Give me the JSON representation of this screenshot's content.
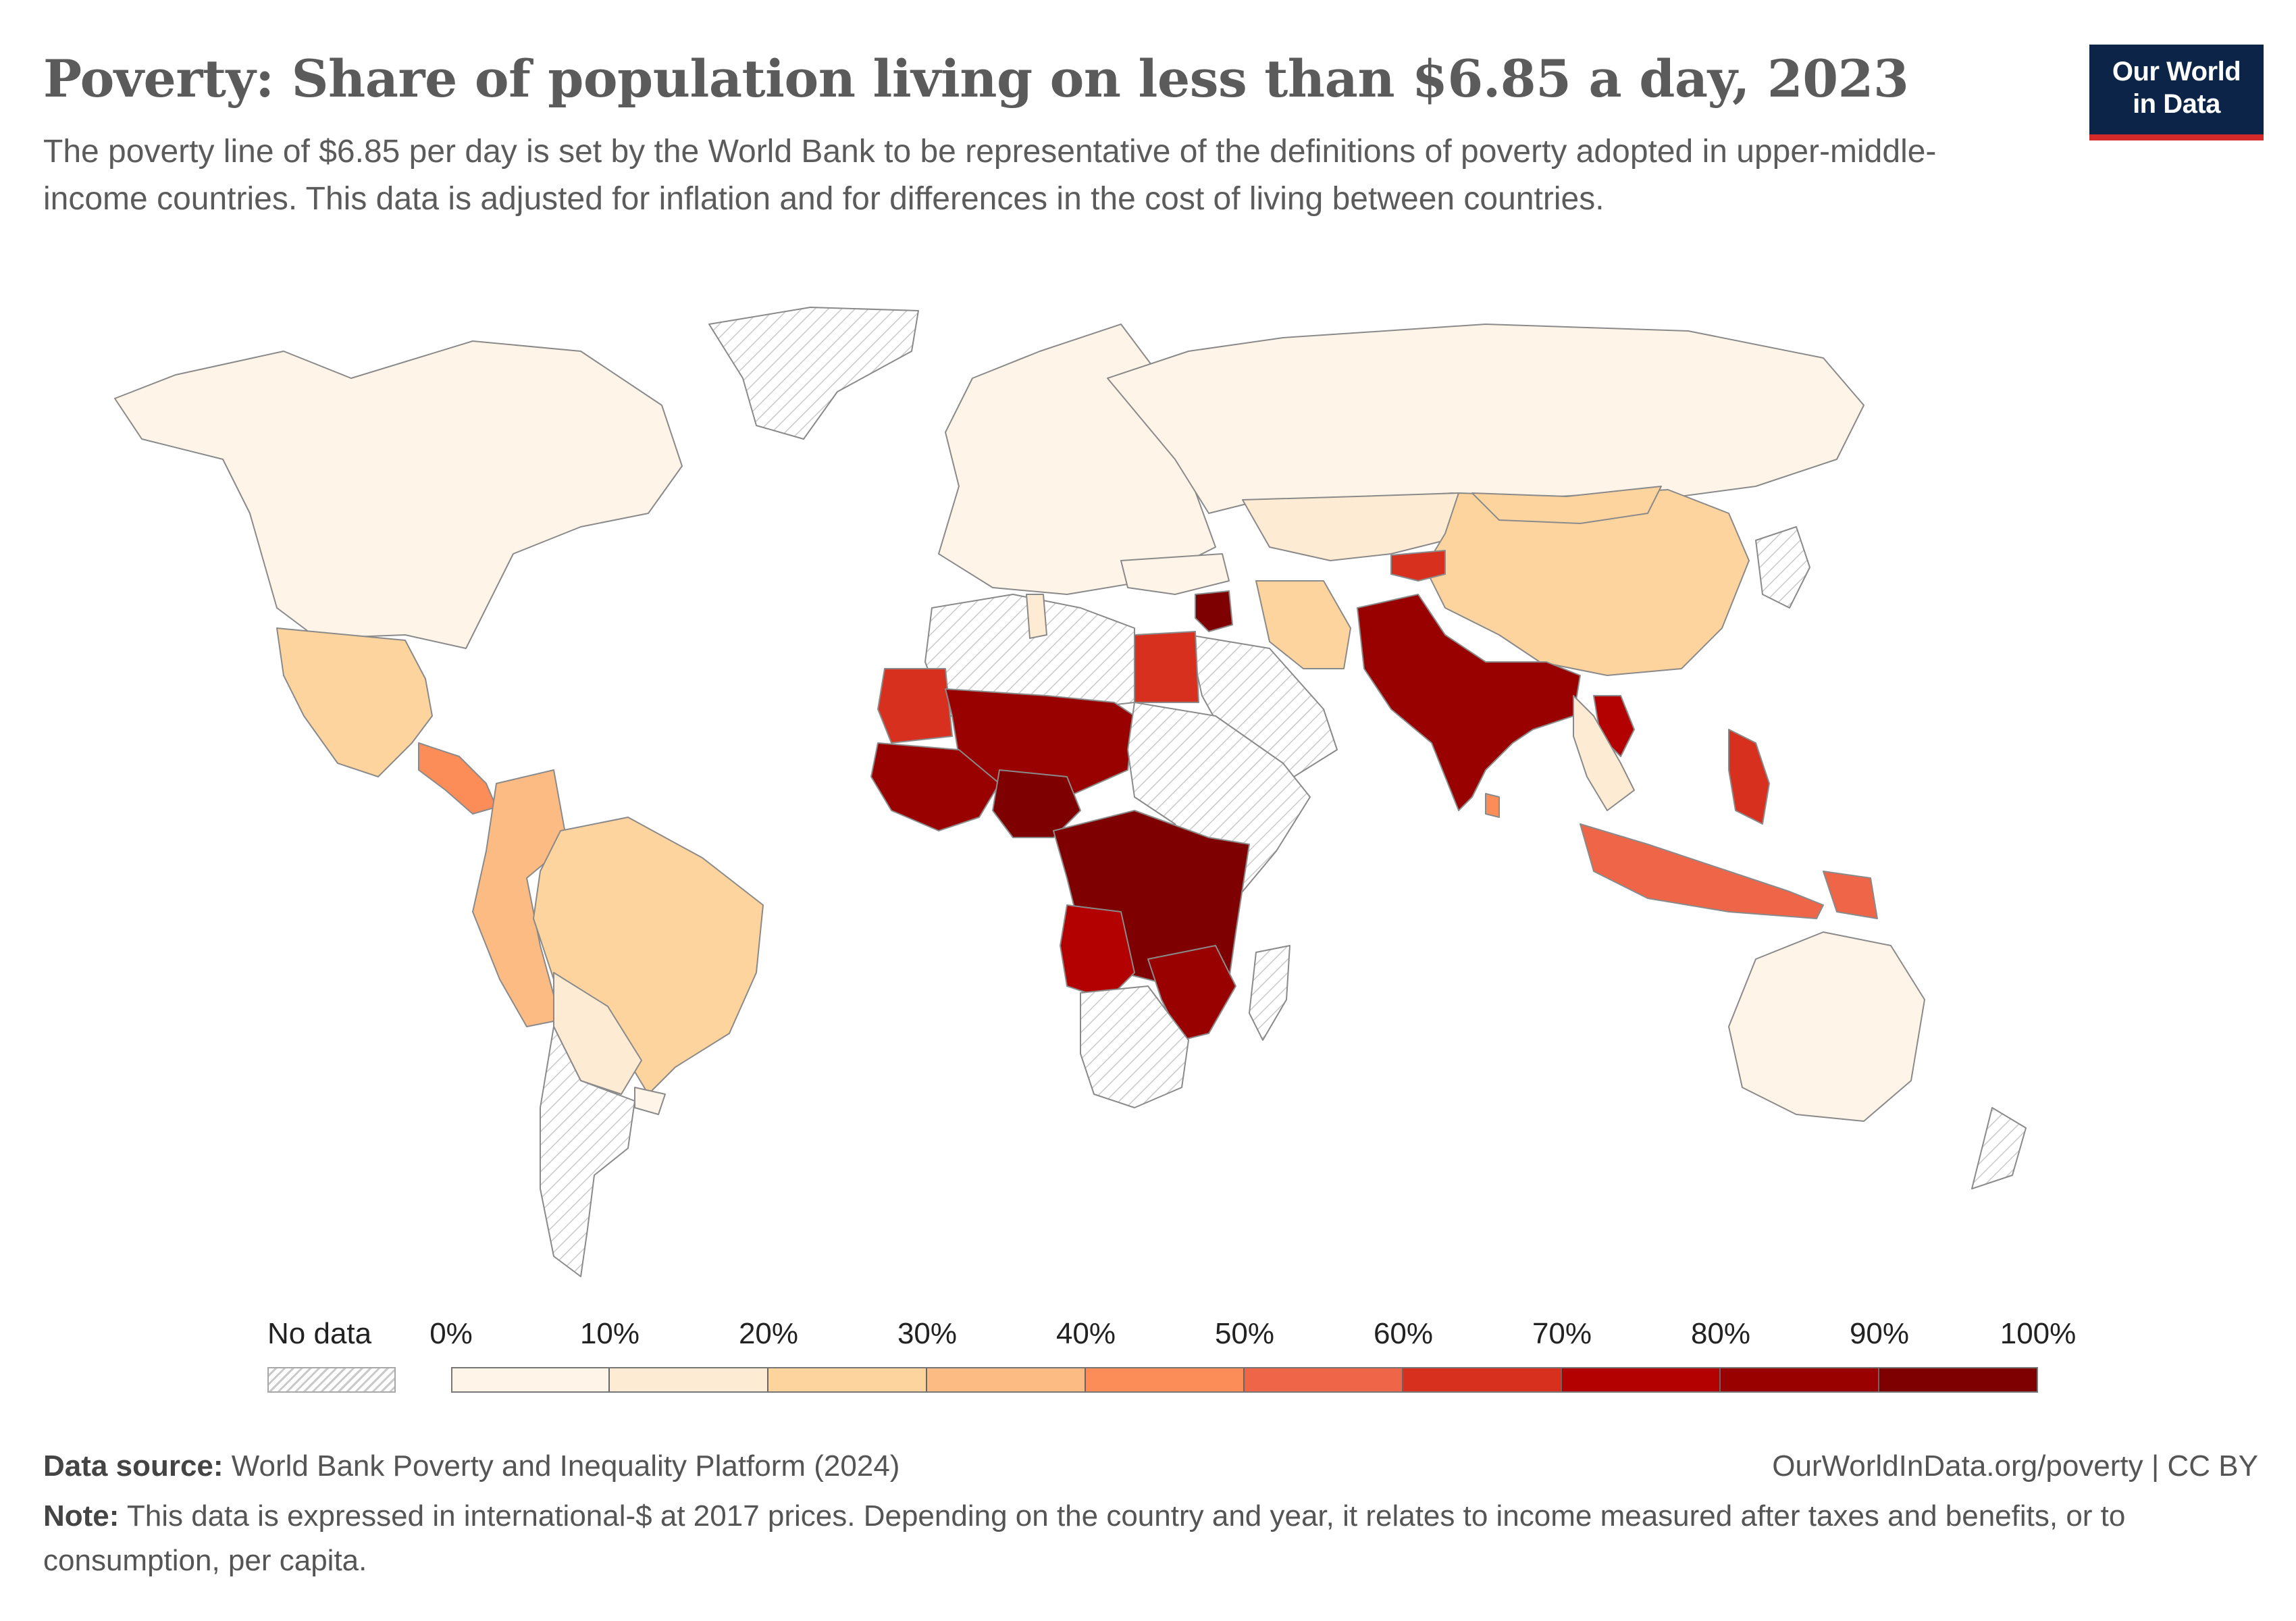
{
  "header": {
    "title": "Poverty: Share of population living on less than $6.85 a day, 2023",
    "subtitle": "The poverty line of $6.85 per day is set by the World Bank to be representative of the definitions of poverty adopted in upper-middle-income countries. This data is adjusted for inflation and for differences in the cost of living between countries."
  },
  "logo": {
    "line1": "Our World",
    "line2": "in Data"
  },
  "colors": {
    "no_data_fill": "#ffffff",
    "no_data_hatch": "#c9c9c9",
    "border": "#8a8a8a",
    "scale": [
      "#fff4e8",
      "#feebd3",
      "#fdd49e",
      "#fdbb84",
      "#fc8d59",
      "#ef6548",
      "#d7301f",
      "#b30000",
      "#990000",
      "#7f0000"
    ]
  },
  "legend": {
    "no_data_label": "No data",
    "ticks": [
      "0%",
      "10%",
      "20%",
      "30%",
      "40%",
      "50%",
      "60%",
      "70%",
      "80%",
      "90%",
      "100%"
    ]
  },
  "map_data": {
    "metric": "Share of population living on less than $6.85 a day (%)",
    "year": 2023,
    "regions": [
      {
        "name": "North America",
        "bin": 0
      },
      {
        "name": "Mexico",
        "bin": 2
      },
      {
        "name": "Central America",
        "bin": 4
      },
      {
        "name": "Colombia & Andes",
        "bin": 3
      },
      {
        "name": "Brazil",
        "bin": 2
      },
      {
        "name": "Bolivia & Paraguay",
        "bin": 1
      },
      {
        "name": "Argentina & Chile",
        "bin": -1
      },
      {
        "name": "Uruguay",
        "bin": 0
      },
      {
        "name": "Greenland",
        "bin": -1
      },
      {
        "name": "Europe",
        "bin": 0
      },
      {
        "name": "Russia",
        "bin": 0
      },
      {
        "name": "Kazakhstan",
        "bin": 1
      },
      {
        "name": "China",
        "bin": 2
      },
      {
        "name": "Mongolia",
        "bin": 2
      },
      {
        "name": "Kyrgyzstan & Tajikistan",
        "bin": 6
      },
      {
        "name": "Iran",
        "bin": 2
      },
      {
        "name": "Turkey",
        "bin": 0
      },
      {
        "name": "Syria",
        "bin": 9
      },
      {
        "name": "Arabian Peninsula",
        "bin": -1
      },
      {
        "name": "Egypt",
        "bin": 6
      },
      {
        "name": "North Africa (Libya, Algeria)",
        "bin": -1
      },
      {
        "name": "Tunisia",
        "bin": 1
      },
      {
        "name": "Mauritania",
        "bin": 6
      },
      {
        "name": "Sahel (Mali, Niger, Chad)",
        "bin": 8
      },
      {
        "name": "West Africa",
        "bin": 8
      },
      {
        "name": "Nigeria",
        "bin": 9
      },
      {
        "name": "Sudan & Horn of Africa",
        "bin": -1
      },
      {
        "name": "Central & East Africa (DRC, Tanzania)",
        "bin": 9
      },
      {
        "name": "Angola",
        "bin": 7
      },
      {
        "name": "Mozambique & Malawi",
        "bin": 8
      },
      {
        "name": "Southern Africa",
        "bin": -1
      },
      {
        "name": "Madagascar",
        "bin": -1
      },
      {
        "name": "South Asia (India, Pakistan, Bangladesh)",
        "bin": 8
      },
      {
        "name": "Sri Lanka",
        "bin": 4
      },
      {
        "name": "Laos",
        "bin": 7
      },
      {
        "name": "Thailand & Vietnam",
        "bin": 1
      },
      {
        "name": "Philippines",
        "bin": 6
      },
      {
        "name": "Indonesia",
        "bin": 5
      },
      {
        "name": "Papua New Guinea",
        "bin": 5
      },
      {
        "name": "Australia",
        "bin": 0
      },
      {
        "name": "Japan & Korea",
        "bin": -1
      },
      {
        "name": "New Zealand",
        "bin": -1
      }
    ]
  },
  "footer": {
    "source_label": "Data source:",
    "source_text": "World Bank Poverty and Inequality Platform (2024)",
    "url": "OurWorldInData.org/poverty | CC BY",
    "note_label": "Note:",
    "note_text": "This data is expressed in international-$ at 2017 prices. Depending on the country and year, it relates to income measured after taxes and benefits, or to consumption, per capita."
  }
}
